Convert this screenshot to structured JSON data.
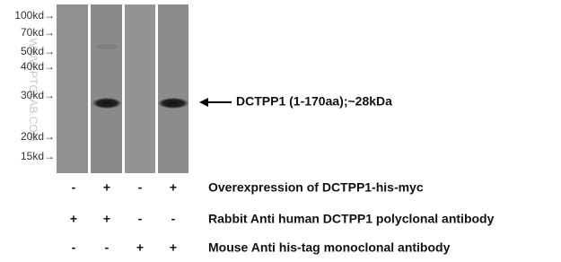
{
  "markers": [
    "100kd→",
    "70kd→",
    "50kd→",
    "40kd→",
    "30kd→",
    "20kd→",
    "15kd→"
  ],
  "watermark": "WWW.PTGLAB.COM",
  "band_label": "DCTPP1 (1-170aa);~28kDa",
  "conditions": [
    {
      "label": "Overexpression of DCTPP1-his-myc",
      "signs": [
        "-",
        "+",
        "-",
        "+"
      ]
    },
    {
      "label": "Rabbit Anti human DCTPP1 polyclonal antibody",
      "signs": [
        "+",
        "+",
        "-",
        "-"
      ]
    },
    {
      "label": "Mouse Anti his-tag monoclonal antibody",
      "signs": [
        "-",
        "-",
        "+",
        "+"
      ]
    }
  ]
}
